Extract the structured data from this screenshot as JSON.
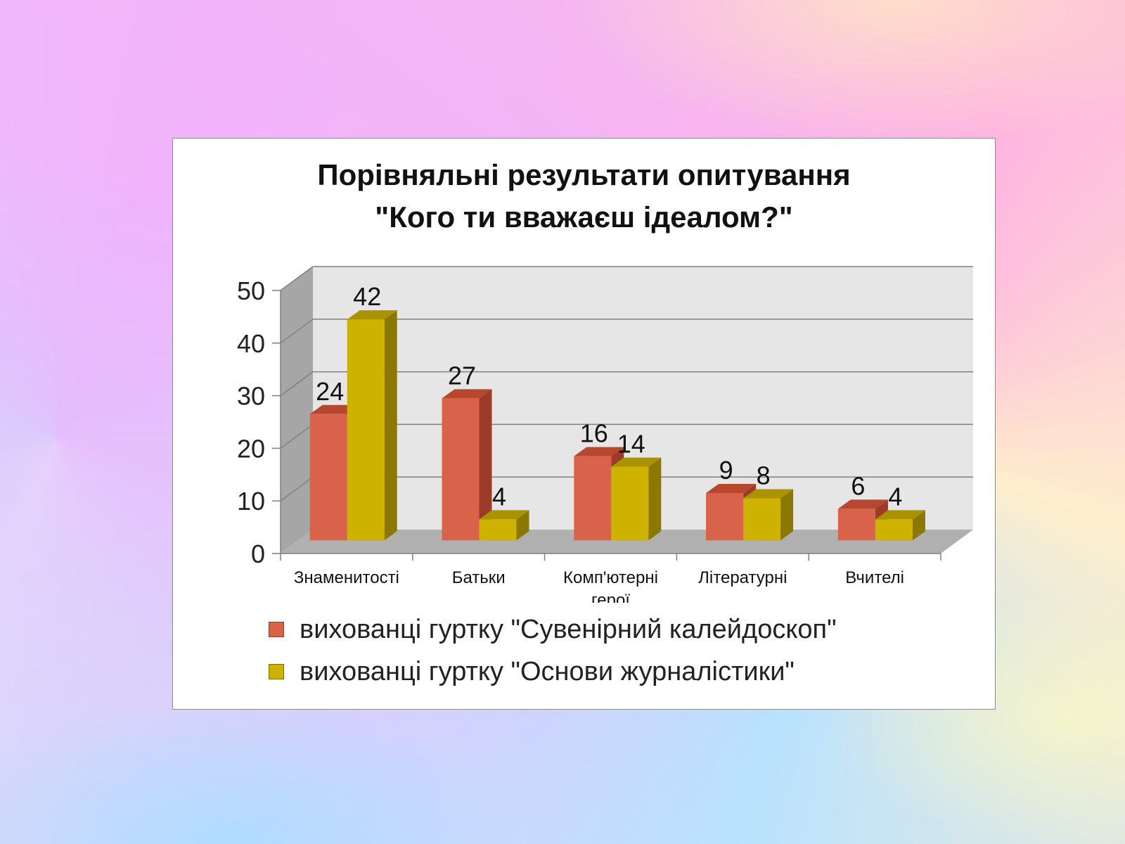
{
  "chart_data": {
    "type": "bar",
    "title_line1": "Порівняльні результати опитування",
    "title_line2": "\"Кого ти вважаєш ідеалом?\"",
    "categories": [
      "Знаменитості",
      "Батьки",
      "Комп'ютерні герої",
      "Літературні",
      "Вчителі"
    ],
    "category_lines": [
      [
        "Знаменитості"
      ],
      [
        "Батьки"
      ],
      [
        "Комп'ютерні",
        "герої"
      ],
      [
        "Літературні"
      ],
      [
        "Вчителі"
      ]
    ],
    "series": [
      {
        "name": "вихованці гуртку \"Сувенірний калейдоскоп\"",
        "values": [
          24,
          27,
          16,
          9,
          6
        ],
        "color": "#d9634a",
        "side_color": "#9c3b28",
        "top_color": "#b8472f"
      },
      {
        "name": "вихованці гуртку \"Основи журналістики\"",
        "values": [
          42,
          4,
          14,
          8,
          4
        ],
        "color": "#cdb300",
        "side_color": "#8a7800",
        "top_color": "#a99300"
      }
    ],
    "ylim": [
      0,
      50
    ],
    "yticks": [
      0,
      10,
      20,
      30,
      40,
      50
    ],
    "ytick_labels": [
      "0",
      "10",
      "20",
      "30",
      "40",
      "50"
    ],
    "data_labels": [
      "24",
      "27",
      "16",
      "9",
      "6",
      "42",
      "4",
      "14",
      "8",
      "4"
    ],
    "grid": true,
    "three_d": true,
    "legend_position": "bottom",
    "wall_color": "#e6e6e6",
    "side_wall_color": "#a6a6a6",
    "floor_color": "#b0b0b0",
    "gridline_color": "#7f7f7f"
  }
}
